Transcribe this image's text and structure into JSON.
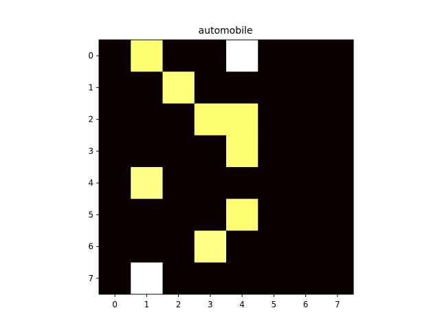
{
  "chart_data": {
    "type": "heatmap",
    "title": "automobile",
    "xlabel": "",
    "ylabel": "",
    "x_ticks": [
      "0",
      "1",
      "2",
      "3",
      "4",
      "5",
      "6",
      "7"
    ],
    "y_ticks": [
      "0",
      "1",
      "2",
      "3",
      "4",
      "5",
      "6",
      "7"
    ],
    "colormap": "hot",
    "grid": false,
    "values": [
      [
        0.0,
        0.86,
        0.0,
        0.0,
        1.0,
        0.0,
        0.0,
        0.0
      ],
      [
        0.0,
        0.0,
        0.87,
        0.0,
        0.0,
        0.0,
        0.0,
        0.0
      ],
      [
        0.0,
        0.0,
        0.0,
        0.86,
        0.86,
        0.0,
        0.0,
        0.0
      ],
      [
        0.0,
        0.0,
        0.0,
        0.0,
        0.86,
        0.0,
        0.0,
        0.0
      ],
      [
        0.0,
        0.88,
        0.0,
        0.0,
        0.0,
        0.0,
        0.0,
        0.0
      ],
      [
        0.0,
        0.0,
        0.0,
        0.0,
        0.86,
        0.0,
        0.0,
        0.0
      ],
      [
        0.0,
        0.0,
        0.0,
        0.88,
        0.0,
        0.0,
        0.0,
        0.0
      ],
      [
        0.0,
        1.0,
        0.0,
        0.0,
        0.0,
        0.0,
        0.0,
        0.0
      ]
    ]
  }
}
